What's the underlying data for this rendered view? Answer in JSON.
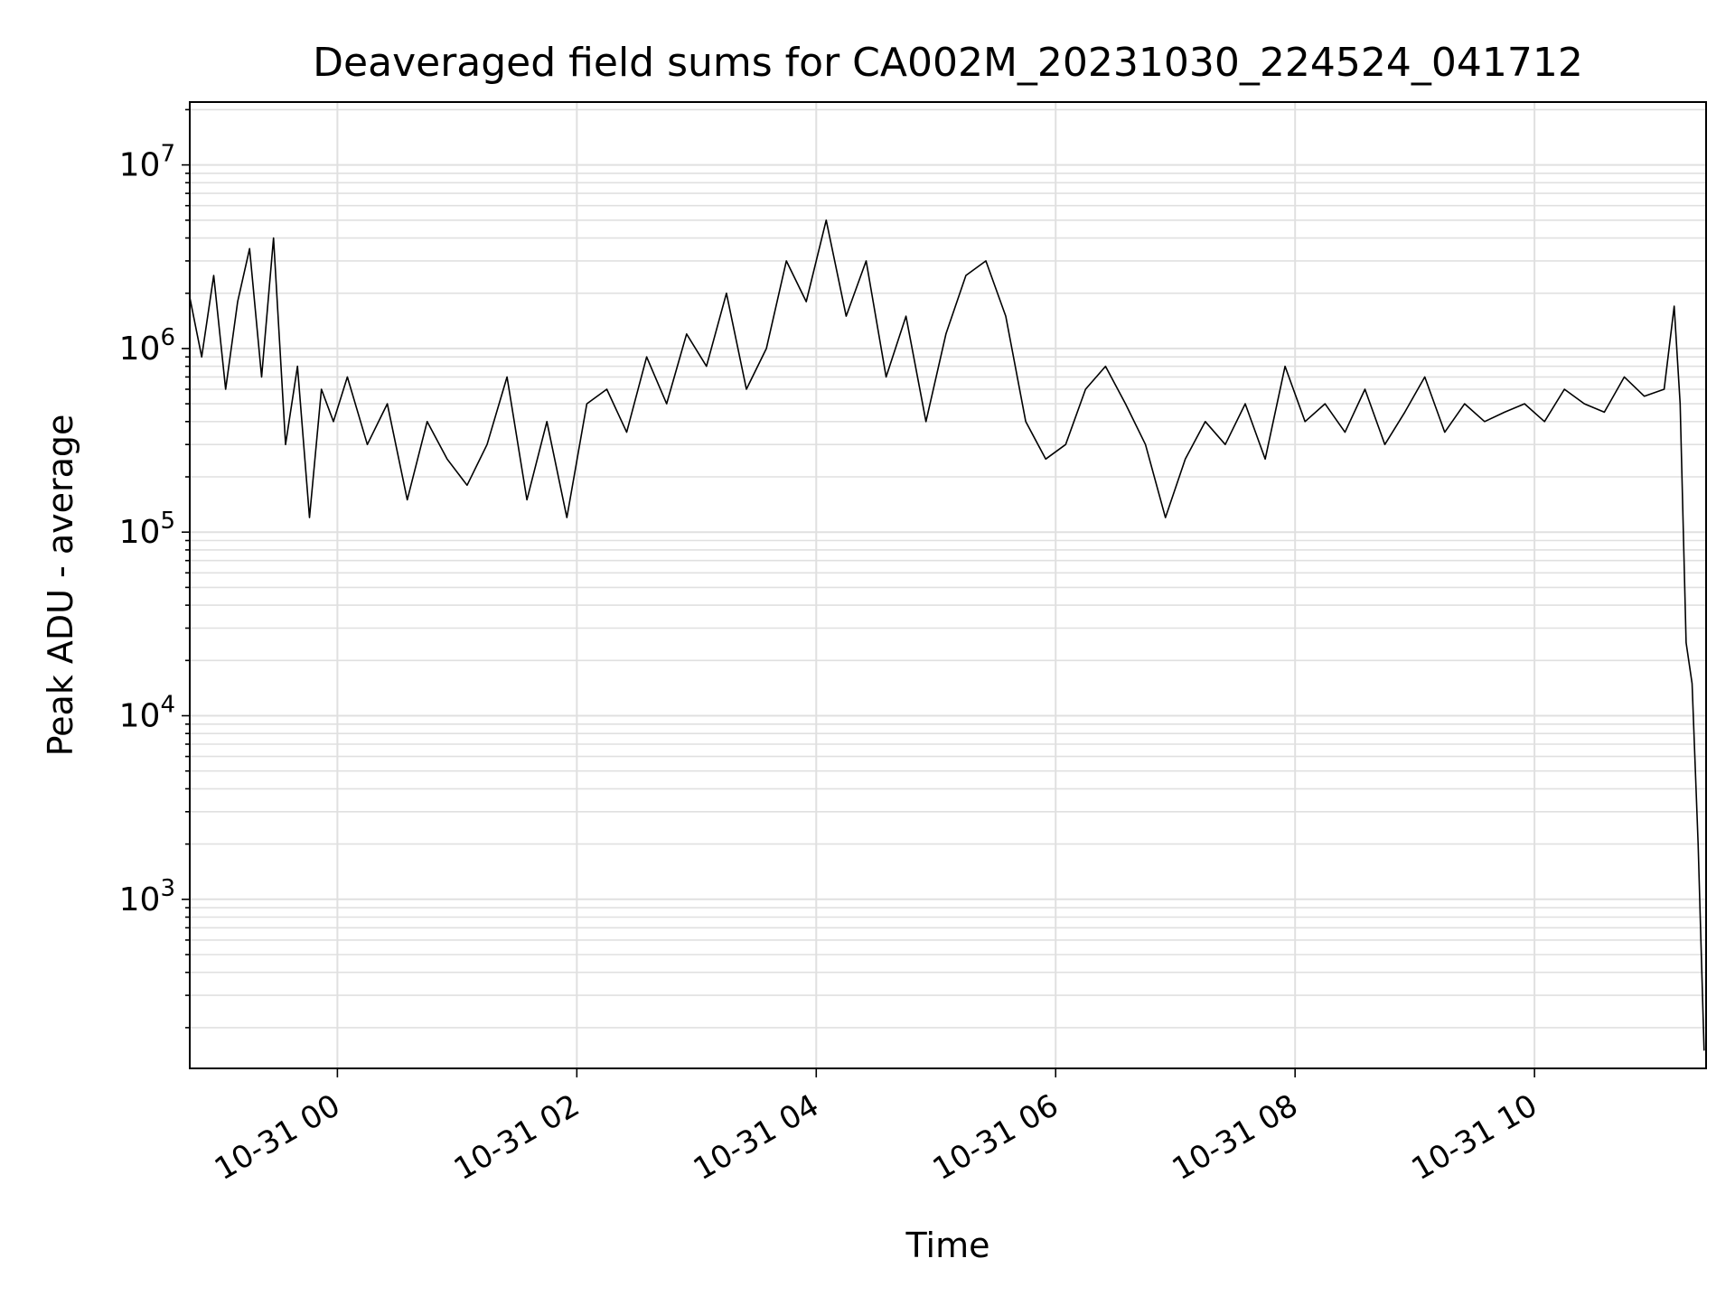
{
  "chart_data": {
    "type": "line",
    "title": "Deaveraged field sums for CA002M_20231030_224524_041712",
    "xlabel": "Time",
    "ylabel": "Peak ADU - average",
    "yscale": "log",
    "grid": true,
    "legend": "none",
    "xlim": [
      "2023-10-30 22:46",
      "2023-10-31 11:26"
    ],
    "ylim": [
      120,
      22000000
    ],
    "x_ticks": [
      "10-31 00",
      "10-31 02",
      "10-31 04",
      "10-31 06",
      "10-31 08",
      "10-31 10"
    ],
    "y_ticks": [
      {
        "base": "10",
        "exp": "3"
      },
      {
        "base": "10",
        "exp": "4"
      },
      {
        "base": "10",
        "exp": "5"
      },
      {
        "base": "10",
        "exp": "6"
      },
      {
        "base": "10",
        "exp": "7"
      }
    ],
    "line_color": "#000000",
    "grid_color": "#e0e0e0",
    "series": [
      {
        "x": [
          "2023-10-30 22:46",
          "2023-10-30 22:52",
          "2023-10-30 22:58",
          "2023-10-30 23:04",
          "2023-10-30 23:10",
          "2023-10-30 23:16",
          "2023-10-30 23:22",
          "2023-10-30 23:28",
          "2023-10-30 23:34",
          "2023-10-30 23:40",
          "2023-10-30 23:46",
          "2023-10-30 23:52",
          "2023-10-30 23:58",
          "2023-10-31 00:05",
          "2023-10-31 00:15",
          "2023-10-31 00:25",
          "2023-10-31 00:35",
          "2023-10-31 00:45",
          "2023-10-31 00:55",
          "2023-10-31 01:05",
          "2023-10-31 01:15",
          "2023-10-31 01:25",
          "2023-10-31 01:35",
          "2023-10-31 01:45",
          "2023-10-31 01:55",
          "2023-10-31 02:05",
          "2023-10-31 02:15",
          "2023-10-31 02:25",
          "2023-10-31 02:35",
          "2023-10-31 02:45",
          "2023-10-31 02:55",
          "2023-10-31 03:05",
          "2023-10-31 03:15",
          "2023-10-31 03:25",
          "2023-10-31 03:35",
          "2023-10-31 03:45",
          "2023-10-31 03:55",
          "2023-10-31 04:05",
          "2023-10-31 04:15",
          "2023-10-31 04:25",
          "2023-10-31 04:35",
          "2023-10-31 04:45",
          "2023-10-31 04:55",
          "2023-10-31 05:05",
          "2023-10-31 05:15",
          "2023-10-31 05:25",
          "2023-10-31 05:35",
          "2023-10-31 05:45",
          "2023-10-31 05:55",
          "2023-10-31 06:05",
          "2023-10-31 06:15",
          "2023-10-31 06:25",
          "2023-10-31 06:35",
          "2023-10-31 06:45",
          "2023-10-31 06:55",
          "2023-10-31 07:05",
          "2023-10-31 07:15",
          "2023-10-31 07:25",
          "2023-10-31 07:35",
          "2023-10-31 07:45",
          "2023-10-31 07:55",
          "2023-10-31 08:05",
          "2023-10-31 08:15",
          "2023-10-31 08:25",
          "2023-10-31 08:35",
          "2023-10-31 08:45",
          "2023-10-31 08:55",
          "2023-10-31 09:05",
          "2023-10-31 09:15",
          "2023-10-31 09:25",
          "2023-10-31 09:35",
          "2023-10-31 09:45",
          "2023-10-31 09:55",
          "2023-10-31 10:05",
          "2023-10-31 10:15",
          "2023-10-31 10:25",
          "2023-10-31 10:35",
          "2023-10-31 10:45",
          "2023-10-31 10:55",
          "2023-10-31 11:05",
          "2023-10-31 11:10",
          "2023-10-31 11:13",
          "2023-10-31 11:16",
          "2023-10-31 11:19",
          "2023-10-31 11:22",
          "2023-10-31 11:25"
        ],
        "values": [
          1900000,
          900000,
          2500000,
          600000,
          1800000,
          3500000,
          700000,
          4000000,
          300000,
          800000,
          120000,
          600000,
          400000,
          700000,
          300000,
          500000,
          150000,
          400000,
          250000,
          180000,
          300000,
          700000,
          150000,
          400000,
          120000,
          500000,
          600000,
          350000,
          900000,
          500000,
          1200000,
          800000,
          2000000,
          600000,
          1000000,
          3000000,
          1800000,
          5000000,
          1500000,
          3000000,
          700000,
          1500000,
          400000,
          1200000,
          2500000,
          3000000,
          1500000,
          400000,
          250000,
          300000,
          600000,
          800000,
          500000,
          300000,
          120000,
          250000,
          400000,
          300000,
          500000,
          250000,
          800000,
          400000,
          500000,
          350000,
          600000,
          300000,
          450000,
          700000,
          350000,
          500000,
          400000,
          450000,
          500000,
          400000,
          600000,
          500000,
          450000,
          700000,
          550000,
          600000,
          1700000,
          500000,
          25000,
          15000,
          2000,
          150
        ]
      }
    ]
  }
}
